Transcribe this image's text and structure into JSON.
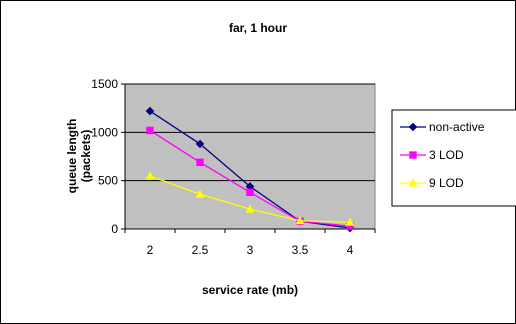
{
  "chart_data": {
    "type": "line",
    "title": "far, 1 hour",
    "xlabel": "service rate (mb)",
    "ylabel_lines": [
      "queue length",
      "(packets)"
    ],
    "categories": [
      "2",
      "2.5",
      "3",
      "3.5",
      "4"
    ],
    "ylim": [
      0,
      1500
    ],
    "yticks": [
      "0",
      "500",
      "1000",
      "1500"
    ],
    "grid": true,
    "legend_position": "right",
    "series": [
      {
        "name": "non-active",
        "values": [
          1220,
          880,
          440,
          80,
          10
        ],
        "color": "#000080",
        "marker": "diamond"
      },
      {
        "name": "3 LOD",
        "values": [
          1020,
          690,
          380,
          80,
          30
        ],
        "color": "#FF00FF",
        "marker": "square"
      },
      {
        "name": "9 LOD",
        "values": [
          550,
          360,
          205,
          85,
          70
        ],
        "color": "#FFFF00",
        "marker": "triangle"
      }
    ],
    "plot_background": "#C0C0C0"
  }
}
